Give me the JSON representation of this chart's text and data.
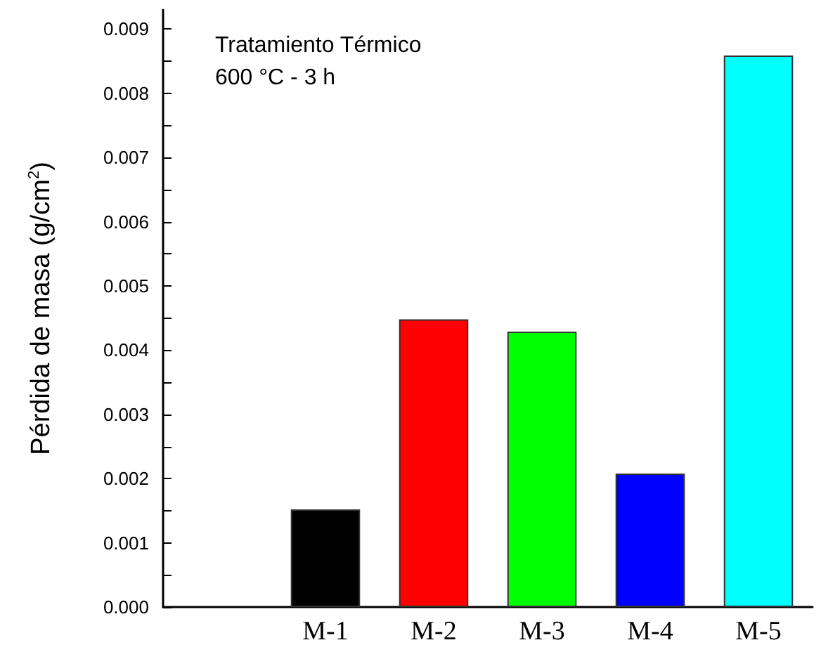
{
  "chart_data": {
    "type": "bar",
    "ylabel": "Pérdida de masa (g/cm$^{2}$)",
    "annotations": [
      "Tratamiento Térmico",
      "600 °C - 3 h"
    ],
    "categories": [
      null,
      "M-1",
      "M-2",
      "M-3",
      "M-4",
      "M-5"
    ],
    "values": [
      null,
      0.00152,
      0.00448,
      0.00429,
      0.00208,
      0.00859
    ],
    "colors": [
      "#000000",
      "#000000",
      "#ff0000",
      "#00ff00",
      "#0000ff",
      "#00ffff"
    ],
    "ylim": [
      0,
      0.0093
    ],
    "yticks": [
      {
        "value": 0,
        "label": "0.000"
      },
      {
        "value": 0.0005,
        "label": null
      },
      0.001,
      {
        "value": 0.0015,
        "label": null
      },
      0.002,
      {
        "value": 0.0025,
        "label": null
      },
      0.003,
      {
        "value": 0.0035,
        "label": null
      },
      0.004,
      {
        "value": 0.0045,
        "label": null
      },
      0.005,
      {
        "value": 0.0055,
        "label": null
      },
      0.006,
      {
        "value": 0.0065,
        "label": null
      },
      0.007,
      {
        "value": 0.0075,
        "label": null
      },
      0.008,
      {
        "value": 0.0085,
        "label": null
      },
      0.009
    ],
    "grid": false
  }
}
